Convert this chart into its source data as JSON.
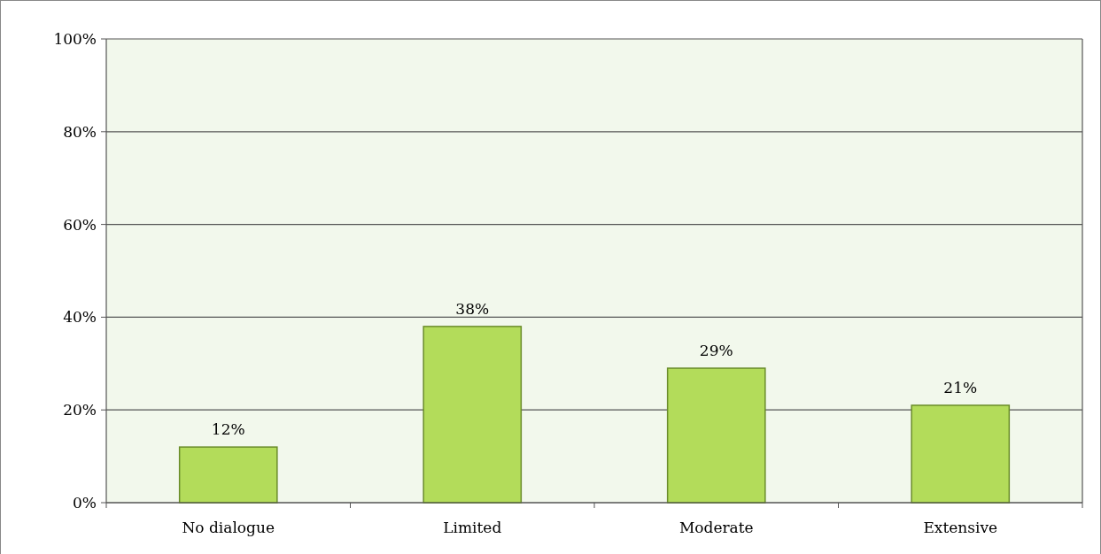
{
  "chart_data": {
    "type": "bar",
    "categories": [
      "No dialogue",
      "Limited",
      "Moderate",
      "Extensive"
    ],
    "values": [
      12,
      38,
      29,
      21
    ],
    "value_labels": [
      "12%",
      "38%",
      "29%",
      "21%"
    ],
    "color": "#b3dc5a",
    "ylim": [
      0,
      100
    ],
    "yticks": [
      {
        "value": 0,
        "label": "0%"
      },
      {
        "value": 20,
        "label": "20%"
      },
      {
        "value": 40,
        "label": "40%"
      },
      {
        "value": 60,
        "label": "60%"
      },
      {
        "value": 80,
        "label": "80%"
      },
      {
        "value": 100,
        "label": "100%"
      }
    ],
    "grid": "y"
  }
}
